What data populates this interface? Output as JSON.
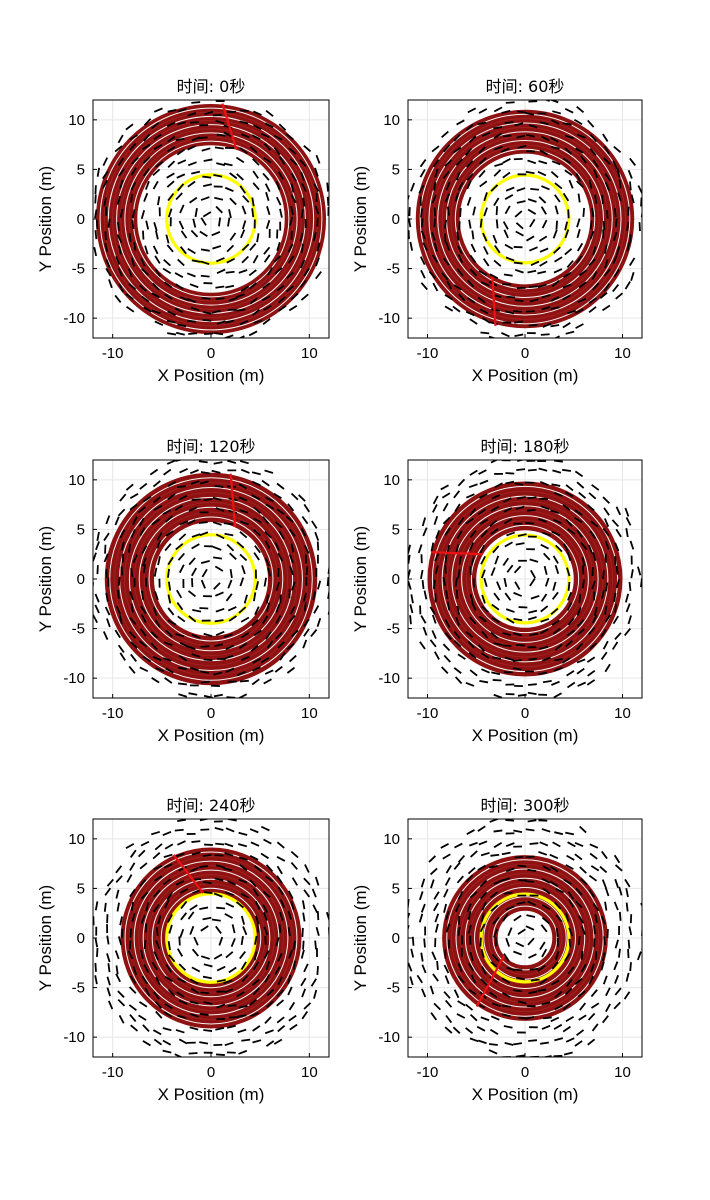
{
  "figure": {
    "panel_count": 6,
    "colors": {
      "spiral": "#8f1212",
      "spiral_highlight": "#ffffff",
      "turn_marker": "#ee1111",
      "reference_circle": "#ffff00",
      "dashes": "#000000",
      "grid": "#e6e6e6"
    }
  },
  "chart_data": [
    {
      "type": "scatter",
      "title": "时间: 0秒",
      "xlabel": "X Position (m)",
      "ylabel": "Y Position (m)",
      "xlim": [
        -12,
        12
      ],
      "ylim": [
        -12,
        12
      ],
      "xticks": [
        -10,
        0,
        10
      ],
      "yticks": [
        -10,
        -5,
        0,
        5,
        10
      ],
      "grid": true,
      "series": [
        {
          "kind": "spiral",
          "r_inner": 7.5,
          "r_outer": 11.7,
          "turns": 5,
          "turn_angle_deg": 70
        },
        {
          "kind": "reference_circle",
          "radius": 4.5
        },
        {
          "kind": "dash_field",
          "r_max": 12.5,
          "spacing": 1.25
        }
      ]
    },
    {
      "type": "scatter",
      "title": "时间: 60秒",
      "xlabel": "X Position (m)",
      "ylabel": "Y Position (m)",
      "xlim": [
        -12,
        12
      ],
      "ylim": [
        -12,
        12
      ],
      "xticks": [
        -10,
        0,
        10
      ],
      "yticks": [
        -10,
        -5,
        0,
        5,
        10
      ],
      "grid": true,
      "series": [
        {
          "kind": "spiral",
          "r_inner": 6.7,
          "r_outer": 11.2,
          "turns": 5,
          "turn_angle_deg": 240
        },
        {
          "kind": "reference_circle",
          "radius": 4.5
        },
        {
          "kind": "dash_field",
          "r_max": 12.5,
          "spacing": 1.25
        }
      ]
    },
    {
      "type": "scatter",
      "title": "时间: 120秒",
      "xlabel": "X Position (m)",
      "ylabel": "Y Position (m)",
      "xlim": [
        -12,
        12
      ],
      "ylim": [
        -12,
        12
      ],
      "xticks": [
        -10,
        0,
        10
      ],
      "yticks": [
        -10,
        -5,
        0,
        5,
        10
      ],
      "grid": true,
      "series": [
        {
          "kind": "spiral",
          "r_inner": 5.8,
          "r_outer": 10.8,
          "turns": 5,
          "turn_angle_deg": 65
        },
        {
          "kind": "reference_circle",
          "radius": 4.5
        },
        {
          "kind": "dash_field",
          "r_max": 12.5,
          "spacing": 1.25
        }
      ]
    },
    {
      "type": "scatter",
      "title": "时间: 180秒",
      "xlabel": "X Position (m)",
      "ylabel": "Y Position (m)",
      "xlim": [
        -12,
        12
      ],
      "ylim": [
        -12,
        12
      ],
      "xticks": [
        -10,
        0,
        10
      ],
      "yticks": [
        -10,
        -5,
        0,
        5,
        10
      ],
      "grid": true,
      "series": [
        {
          "kind": "spiral",
          "r_inner": 5.0,
          "r_outer": 10.0,
          "turns": 5,
          "turn_angle_deg": 150
        },
        {
          "kind": "reference_circle",
          "radius": 4.5
        },
        {
          "kind": "dash_field",
          "r_max": 12.5,
          "spacing": 1.25
        }
      ]
    },
    {
      "type": "scatter",
      "title": "时间: 240秒",
      "xlabel": "X Position (m)",
      "ylabel": "Y Position (m)",
      "xlim": [
        -12,
        12
      ],
      "ylim": [
        -12,
        12
      ],
      "xticks": [
        -10,
        0,
        10
      ],
      "yticks": [
        -10,
        -5,
        0,
        5,
        10
      ],
      "grid": true,
      "series": [
        {
          "kind": "spiral",
          "r_inner": 4.6,
          "r_outer": 9.2,
          "turns": 5,
          "turn_angle_deg": 100
        },
        {
          "kind": "reference_circle",
          "radius": 4.5
        },
        {
          "kind": "dash_field",
          "r_max": 12.5,
          "spacing": 1.25
        }
      ]
    },
    {
      "type": "scatter",
      "title": "时间: 300秒",
      "xlabel": "X Position (m)",
      "ylabel": "Y Position (m)",
      "xlim": [
        -12,
        12
      ],
      "ylim": [
        -12,
        12
      ],
      "xticks": [
        -10,
        0,
        10
      ],
      "yticks": [
        -10,
        -5,
        0,
        5,
        10
      ],
      "grid": true,
      "series": [
        {
          "kind": "spiral",
          "r_inner": 2.8,
          "r_outer": 8.5,
          "turns": 6,
          "turn_angle_deg": 220
        },
        {
          "kind": "reference_circle",
          "radius": 4.5
        },
        {
          "kind": "dash_field",
          "r_max": 12.5,
          "spacing": 1.25
        }
      ]
    }
  ]
}
